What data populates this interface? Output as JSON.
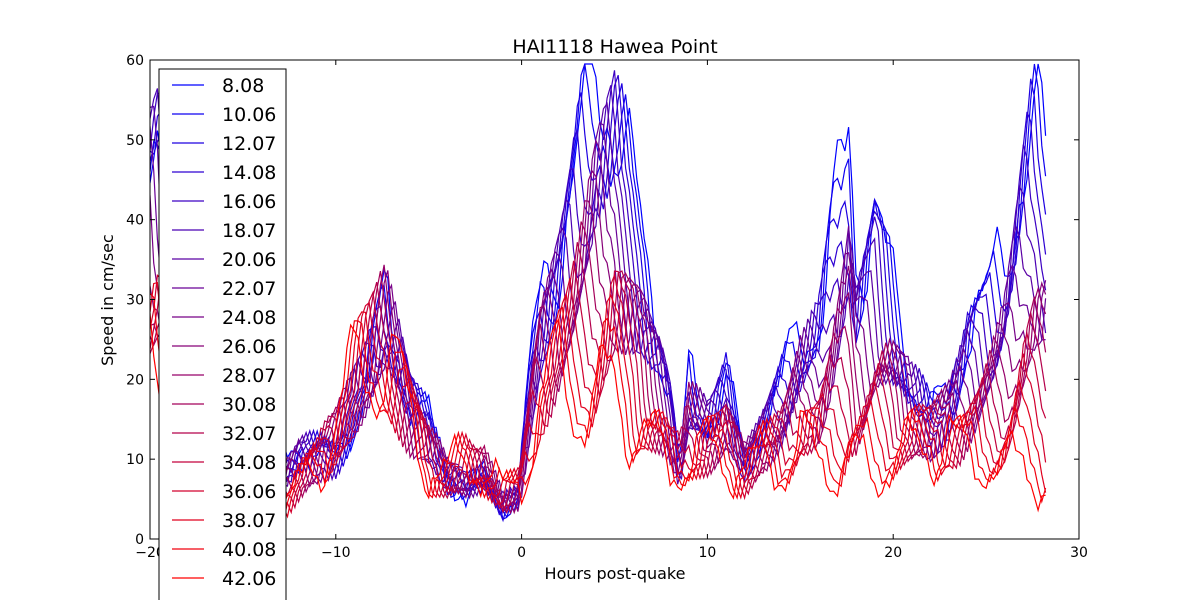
{
  "chart_data": {
    "type": "line",
    "title": "HAI1118   Hawea Point",
    "xlabel": "Hours post-quake",
    "ylabel": "Speed in cm/sec",
    "xlim": [
      -20,
      30
    ],
    "ylim": [
      0,
      60
    ],
    "xticks": [
      -20,
      -10,
      0,
      10,
      20,
      30
    ],
    "xtick_labels": [
      "−20",
      "−10",
      "0",
      "10",
      "20",
      "30"
    ],
    "yticks": [
      0,
      10,
      20,
      30,
      40,
      50,
      60
    ],
    "ytick_labels": [
      "0",
      "10",
      "20",
      "30",
      "40",
      "50",
      "60"
    ],
    "grid": false,
    "legend_position": "upper-left",
    "color_start": "#0000ff",
    "color_end": "#ff0000",
    "x_step_hours": 0.2,
    "series_count": 18,
    "series": [
      {
        "name": "8.08"
      },
      {
        "name": "10.06"
      },
      {
        "name": "12.07"
      },
      {
        "name": "14.08"
      },
      {
        "name": "16.06"
      },
      {
        "name": "18.07"
      },
      {
        "name": "20.06"
      },
      {
        "name": "22.07"
      },
      {
        "name": "24.08"
      },
      {
        "name": "26.06"
      },
      {
        "name": "28.07"
      },
      {
        "name": "30.08"
      },
      {
        "name": "32.07"
      },
      {
        "name": "34.08"
      },
      {
        "name": "36.06"
      },
      {
        "name": "38.07"
      },
      {
        "name": "40.08"
      },
      {
        "name": "42.06"
      }
    ],
    "envelope_early": {
      "x": [
        -20,
        -19.5,
        -18,
        -17,
        -15,
        -13,
        -12,
        -10,
        -8.5,
        -7.3,
        -6,
        -5,
        -4,
        -3,
        -2,
        -1,
        -0.2,
        0.5,
        1,
        2,
        3,
        4,
        5,
        6,
        6.5,
        7,
        7.5,
        8,
        8.5,
        9,
        10,
        11,
        12,
        13,
        14,
        15,
        16,
        17,
        17.6,
        18,
        19,
        20,
        21,
        22,
        23,
        24,
        25,
        25.5,
        26,
        27,
        27.5,
        28.2
      ],
      "y": [
        56,
        55,
        10,
        8,
        6,
        9,
        12,
        10,
        18,
        29,
        18,
        15,
        8,
        5,
        8,
        3,
        5,
        22,
        30,
        37,
        48,
        58,
        55,
        43,
        37,
        30,
        25,
        18,
        8,
        20,
        15,
        20,
        10,
        15,
        20,
        25,
        28,
        42,
        49,
        35,
        42,
        30,
        20,
        15,
        18,
        28,
        30,
        32,
        35,
        48,
        52,
        46
      ]
    },
    "envelope_late": {
      "x": [
        -20,
        -19.5,
        -18,
        -17,
        -15,
        -13,
        -11,
        -10,
        -8.5,
        -7.5,
        -6,
        -5,
        -4,
        -3,
        -2,
        -1,
        0,
        1,
        2,
        3,
        4,
        5,
        6,
        7,
        8,
        9,
        10,
        11,
        12,
        13,
        14,
        15,
        16,
        17,
        18,
        19,
        20,
        21,
        22,
        23,
        24,
        25,
        26,
        27,
        28.2
      ],
      "y": [
        20,
        18,
        5,
        3,
        5,
        4,
        9,
        15,
        22,
        24,
        15,
        9,
        8,
        10,
        9,
        6,
        7,
        18,
        20,
        18,
        17,
        19,
        15,
        12,
        9,
        10,
        11,
        10,
        9,
        10,
        9,
        12,
        10,
        9,
        10,
        8,
        10,
        11,
        12,
        13,
        10,
        10,
        9,
        10,
        6
      ]
    }
  }
}
